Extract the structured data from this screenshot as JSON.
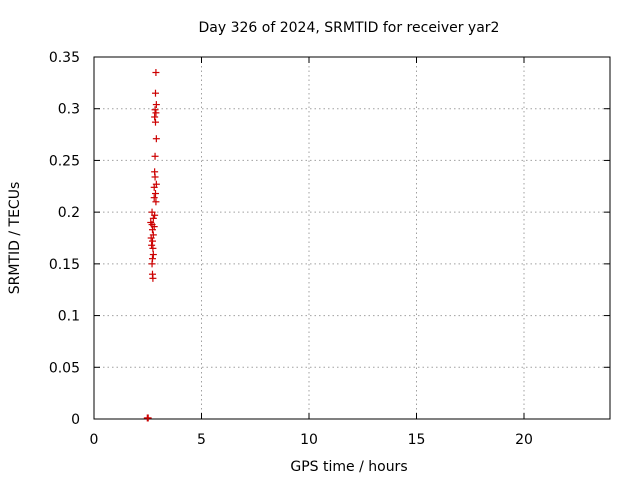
{
  "chart_data": {
    "type": "scatter",
    "title": "Day 326 of 2024, SRMTID for receiver yar2",
    "xlabel": "GPS time / hours",
    "ylabel": "SRMTID / TECUs",
    "xlim": [
      0,
      24
    ],
    "ylim": [
      0,
      0.35
    ],
    "xticks": [
      "0",
      "5",
      "10",
      "15",
      "20"
    ],
    "yticks": [
      "0",
      "0.05",
      "0.1",
      "0.15",
      "0.2",
      "0.25",
      "0.3",
      "0.35"
    ],
    "grid": true,
    "marker_color": "#cc0000",
    "points": [
      {
        "x": 2.88,
        "y": 0.335
      },
      {
        "x": 2.86,
        "y": 0.315
      },
      {
        "x": 2.9,
        "y": 0.304
      },
      {
        "x": 2.84,
        "y": 0.299
      },
      {
        "x": 2.88,
        "y": 0.296
      },
      {
        "x": 2.82,
        "y": 0.292
      },
      {
        "x": 2.86,
        "y": 0.287
      },
      {
        "x": 2.9,
        "y": 0.271
      },
      {
        "x": 2.84,
        "y": 0.254
      },
      {
        "x": 2.82,
        "y": 0.239
      },
      {
        "x": 2.84,
        "y": 0.234
      },
      {
        "x": 2.9,
        "y": 0.227
      },
      {
        "x": 2.8,
        "y": 0.224
      },
      {
        "x": 2.86,
        "y": 0.218
      },
      {
        "x": 2.8,
        "y": 0.214
      },
      {
        "x": 2.88,
        "y": 0.21
      },
      {
        "x": 2.7,
        "y": 0.2
      },
      {
        "x": 2.82,
        "y": 0.197
      },
      {
        "x": 2.76,
        "y": 0.194
      },
      {
        "x": 2.64,
        "y": 0.19
      },
      {
        "x": 2.7,
        "y": 0.188
      },
      {
        "x": 2.8,
        "y": 0.186
      },
      {
        "x": 2.72,
        "y": 0.183
      },
      {
        "x": 2.76,
        "y": 0.178
      },
      {
        "x": 2.66,
        "y": 0.175
      },
      {
        "x": 2.72,
        "y": 0.172
      },
      {
        "x": 2.68,
        "y": 0.168
      },
      {
        "x": 2.74,
        "y": 0.165
      },
      {
        "x": 2.76,
        "y": 0.159
      },
      {
        "x": 2.72,
        "y": 0.155
      },
      {
        "x": 2.7,
        "y": 0.15
      },
      {
        "x": 2.72,
        "y": 0.14
      },
      {
        "x": 2.74,
        "y": 0.136
      },
      {
        "x": 2.48,
        "y": 0.001
      },
      {
        "x": 2.52,
        "y": 0.001
      }
    ]
  }
}
